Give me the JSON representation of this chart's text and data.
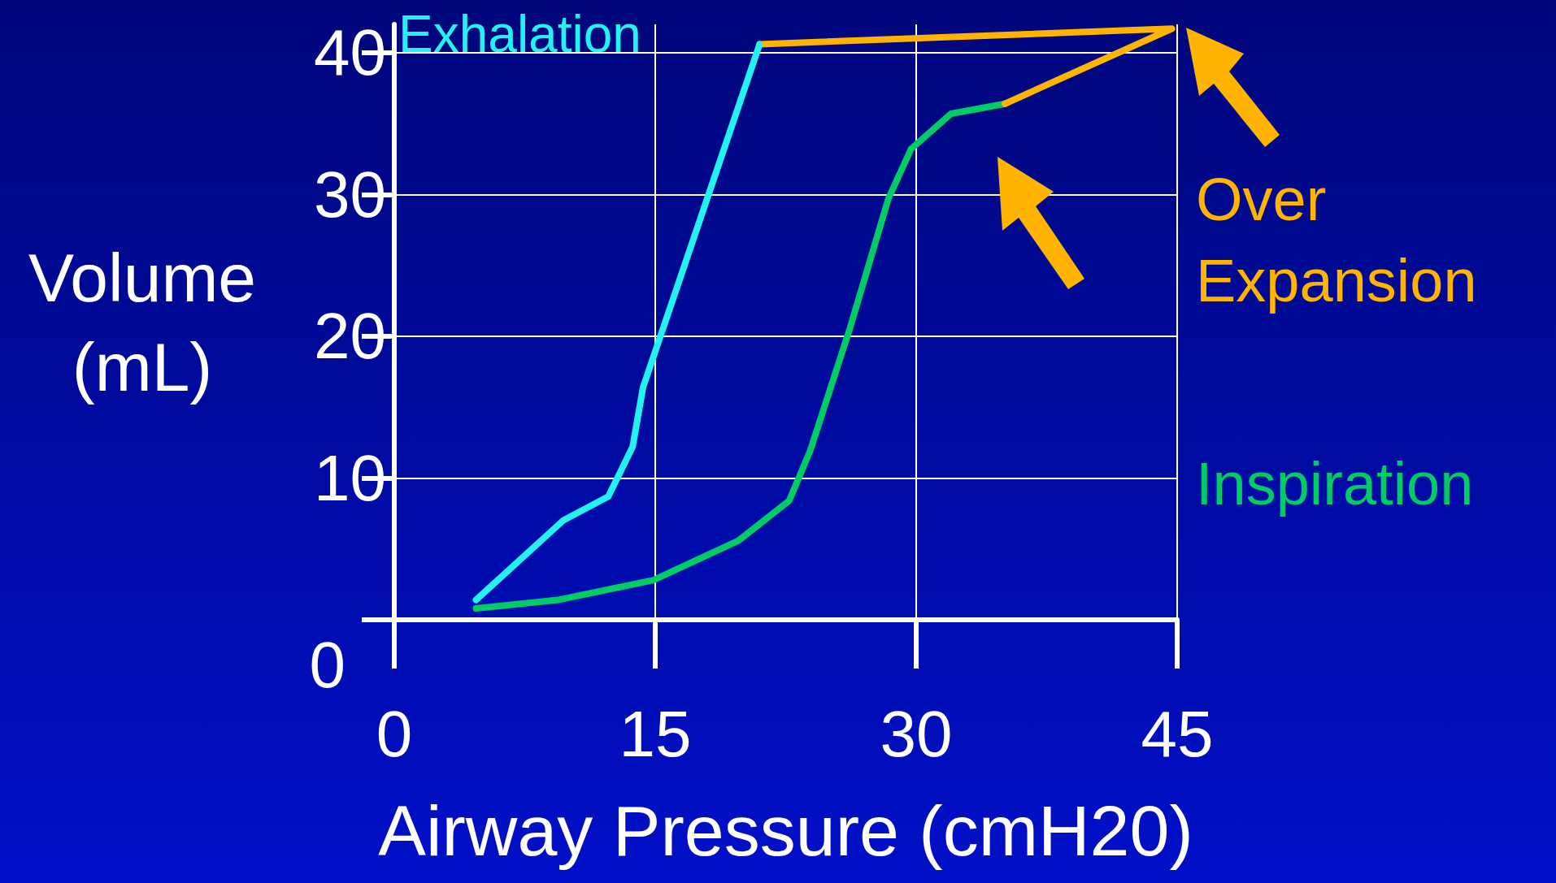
{
  "chart_data": {
    "type": "line",
    "xlabel": "Airway Pressure (cmH20)",
    "ylabel": "Volume (mL)",
    "xlim": [
      0,
      45
    ],
    "xticks": [
      0,
      15,
      30,
      45
    ],
    "ylim": [
      0,
      42
    ],
    "yticks": [
      0,
      10,
      20,
      30,
      40
    ],
    "grid": true,
    "marker": "none",
    "line_style": "solid",
    "series": [
      {
        "name": "Inspiration",
        "color": "#00cc66",
        "x": [
          4.7,
          9.4,
          14.9,
          19.8,
          22.7,
          23.9,
          26.2,
          28.4,
          29.7,
          32,
          35.1
        ],
        "values": [
          0.8,
          1.4,
          2.8,
          5.6,
          8.4,
          11.9,
          20.6,
          29.7,
          33.2,
          35.7,
          36.4
        ]
      },
      {
        "name": "Over Expansion",
        "color": "#ffb400",
        "x": [
          35.1,
          44.7,
          21
        ],
        "values": [
          36.4,
          41.7,
          40.6
        ]
      },
      {
        "name": "Exhalation",
        "color": "#22f2f2",
        "x": [
          21,
          14.3,
          13.7,
          12.3,
          9.7,
          4.7
        ],
        "values": [
          40.6,
          16.4,
          12.2,
          8.7,
          7.0,
          1.4
        ]
      }
    ]
  }
}
